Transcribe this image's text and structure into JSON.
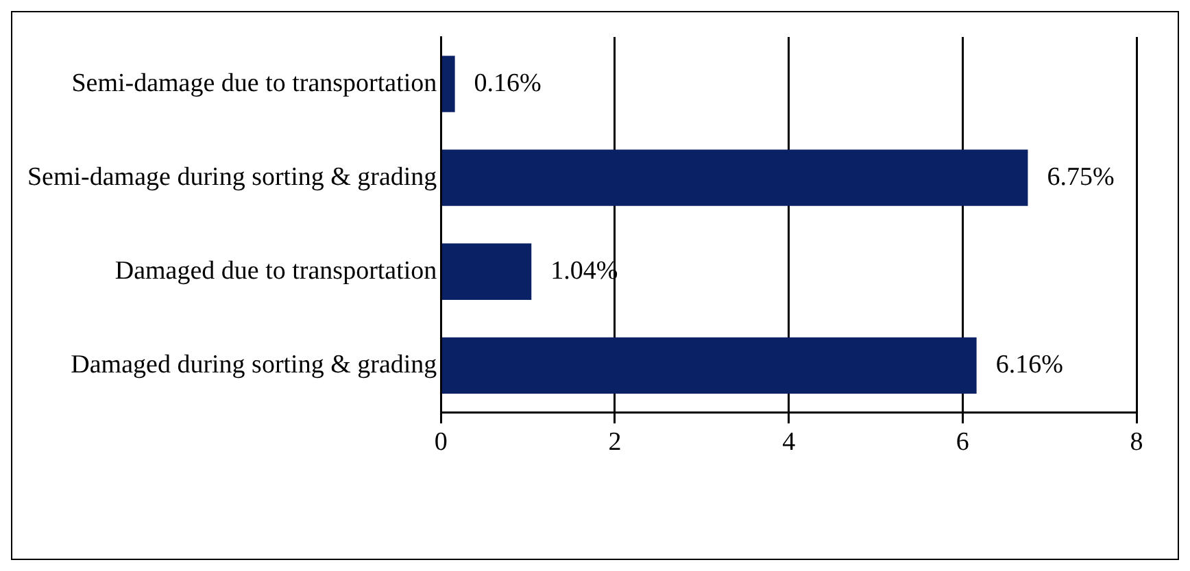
{
  "chart_data": {
    "type": "bar",
    "orientation": "horizontal",
    "categories": [
      "Semi-damage due to transportation",
      "Semi-damage during sorting & grading",
      "Damaged due to transportation",
      "Damaged during sorting & grading"
    ],
    "values": [
      0.16,
      6.75,
      1.04,
      6.16
    ],
    "value_labels": [
      "0.16%",
      "6.75%",
      "1.04%",
      "6.16%"
    ],
    "color": "#0b2166",
    "xlim": [
      0,
      8
    ],
    "xticks": [
      0,
      2,
      4,
      6,
      8
    ],
    "grid": "x",
    "legend": false
  }
}
